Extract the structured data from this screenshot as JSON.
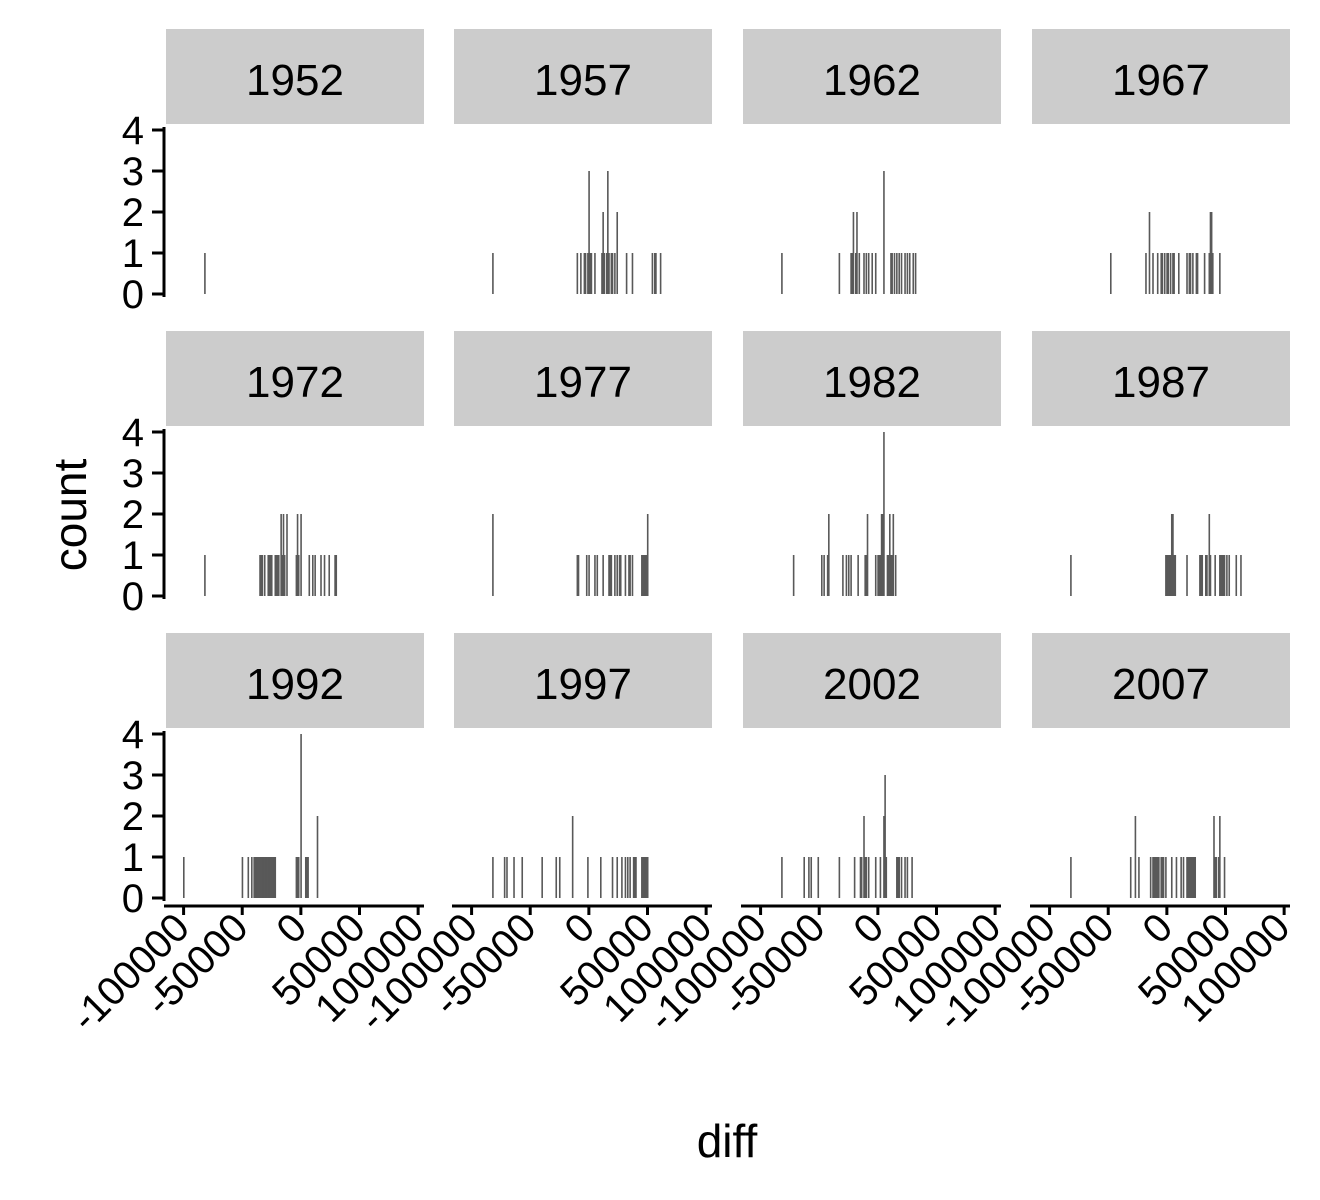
{
  "chart_data": {
    "type": "bar",
    "chart_kind": "faceted histogram",
    "xlabel": "diff",
    "ylabel": "count",
    "xlim": [
      -115000,
      105000
    ],
    "ylim": [
      0,
      4
    ],
    "x_ticks": [
      -100000,
      -50000,
      0,
      50000,
      100000
    ],
    "x_tick_labels": [
      "-100000",
      "-50000",
      "0",
      "50000",
      "100000"
    ],
    "y_ticks": [
      0,
      1,
      2,
      3,
      4
    ],
    "y_tick_labels": [
      "0",
      "1",
      "2",
      "3",
      "4"
    ],
    "grid": false,
    "legend": "none",
    "bar_color": "#595959",
    "strip_color": "#cccccc",
    "facets": [
      {
        "label": "1952",
        "bins": [
          [
            -82000,
            1
          ]
        ]
      },
      {
        "label": "1957",
        "bins": [
          [
            -82000,
            1
          ],
          [
            -10000,
            1
          ],
          [
            -7000,
            1
          ],
          [
            -4000,
            1
          ],
          [
            -3000,
            1
          ],
          [
            -1000,
            1
          ],
          [
            0,
            3
          ],
          [
            1000,
            1
          ],
          [
            2000,
            1
          ],
          [
            5000,
            1
          ],
          [
            11000,
            1
          ],
          [
            12000,
            2
          ],
          [
            13000,
            1
          ],
          [
            15000,
            1
          ],
          [
            16000,
            3
          ],
          [
            17000,
            1
          ],
          [
            19000,
            1
          ],
          [
            20000,
            1
          ],
          [
            22000,
            1
          ],
          [
            24000,
            2
          ],
          [
            32000,
            1
          ],
          [
            37000,
            1
          ],
          [
            54000,
            1
          ],
          [
            56000,
            1
          ],
          [
            57000,
            1
          ],
          [
            61000,
            1
          ]
        ]
      },
      {
        "label": "1962",
        "bins": [
          [
            -82000,
            1
          ],
          [
            -33000,
            1
          ],
          [
            -23000,
            1
          ],
          [
            -22000,
            1
          ],
          [
            -21000,
            2
          ],
          [
            -19000,
            1
          ],
          [
            -18000,
            2
          ],
          [
            -16000,
            1
          ],
          [
            -12000,
            1
          ],
          [
            -10000,
            1
          ],
          [
            -8000,
            1
          ],
          [
            -5000,
            1
          ],
          [
            -2000,
            1
          ],
          [
            5000,
            3
          ],
          [
            11000,
            1
          ],
          [
            12000,
            1
          ],
          [
            14000,
            1
          ],
          [
            16000,
            1
          ],
          [
            18000,
            1
          ],
          [
            20000,
            1
          ],
          [
            23000,
            1
          ],
          [
            25000,
            1
          ],
          [
            27000,
            1
          ],
          [
            30000,
            1
          ],
          [
            32000,
            1
          ]
        ]
      },
      {
        "label": "1967",
        "bins": [
          [
            -48000,
            1
          ],
          [
            -18000,
            1
          ],
          [
            -15000,
            2
          ],
          [
            -12000,
            1
          ],
          [
            -8000,
            1
          ],
          [
            -5000,
            1
          ],
          [
            -4000,
            1
          ],
          [
            -2000,
            1
          ],
          [
            0,
            1
          ],
          [
            1000,
            1
          ],
          [
            3000,
            1
          ],
          [
            5000,
            1
          ],
          [
            6000,
            1
          ],
          [
            10000,
            1
          ],
          [
            17000,
            1
          ],
          [
            19000,
            1
          ],
          [
            20000,
            1
          ],
          [
            22000,
            1
          ],
          [
            25000,
            1
          ],
          [
            26000,
            1
          ],
          [
            32000,
            1
          ],
          [
            36000,
            1
          ],
          [
            37000,
            2
          ],
          [
            38000,
            2
          ],
          [
            39000,
            1
          ],
          [
            45000,
            1
          ]
        ]
      },
      {
        "label": "1972",
        "bins": [
          [
            -82000,
            1
          ],
          [
            -35000,
            1
          ],
          [
            -34000,
            1
          ],
          [
            -33000,
            1
          ],
          [
            -31000,
            1
          ],
          [
            -28000,
            1
          ],
          [
            -27000,
            1
          ],
          [
            -26000,
            1
          ],
          [
            -25000,
            1
          ],
          [
            -22000,
            1
          ],
          [
            -21000,
            1
          ],
          [
            -20000,
            1
          ],
          [
            -19000,
            1
          ],
          [
            -17000,
            2
          ],
          [
            -16000,
            1
          ],
          [
            -15000,
            2
          ],
          [
            -14000,
            1
          ],
          [
            -12000,
            2
          ],
          [
            -4000,
            1
          ],
          [
            -3000,
            2
          ],
          [
            -2000,
            1
          ],
          [
            0,
            2
          ],
          [
            7000,
            1
          ],
          [
            10000,
            1
          ],
          [
            12000,
            1
          ],
          [
            17000,
            1
          ],
          [
            20000,
            1
          ],
          [
            24000,
            1
          ],
          [
            29000,
            1
          ],
          [
            30000,
            1
          ]
        ]
      },
      {
        "label": "1977",
        "bins": [
          [
            -82000,
            2
          ],
          [
            -10000,
            1
          ],
          [
            -9000,
            1
          ],
          [
            -2000,
            1
          ],
          [
            0,
            1
          ],
          [
            5000,
            1
          ],
          [
            7000,
            1
          ],
          [
            12000,
            1
          ],
          [
            17000,
            1
          ],
          [
            18000,
            1
          ],
          [
            19000,
            1
          ],
          [
            22000,
            1
          ],
          [
            24000,
            1
          ],
          [
            26000,
            1
          ],
          [
            27000,
            1
          ],
          [
            31000,
            1
          ],
          [
            34000,
            1
          ],
          [
            35000,
            1
          ],
          [
            37000,
            1
          ],
          [
            45000,
            1
          ],
          [
            46000,
            1
          ],
          [
            47000,
            1
          ],
          [
            48000,
            1
          ],
          [
            49000,
            1
          ],
          [
            50000,
            2
          ]
        ]
      },
      {
        "label": "1982",
        "bins": [
          [
            -72000,
            1
          ],
          [
            -48000,
            1
          ],
          [
            -46000,
            1
          ],
          [
            -43000,
            1
          ],
          [
            -42000,
            2
          ],
          [
            -30000,
            1
          ],
          [
            -27000,
            1
          ],
          [
            -25000,
            1
          ],
          [
            -23000,
            1
          ],
          [
            -17000,
            1
          ],
          [
            -11000,
            1
          ],
          [
            -10000,
            1
          ],
          [
            -9000,
            2
          ],
          [
            -2000,
            1
          ],
          [
            0,
            1
          ],
          [
            1000,
            1
          ],
          [
            2000,
            1
          ],
          [
            3000,
            2
          ],
          [
            4000,
            2
          ],
          [
            5000,
            4
          ],
          [
            8000,
            1
          ],
          [
            9000,
            1
          ],
          [
            10000,
            2
          ],
          [
            11000,
            1
          ],
          [
            12000,
            1
          ],
          [
            13000,
            2
          ],
          [
            15000,
            1
          ]
        ]
      },
      {
        "label": "1987",
        "bins": [
          [
            -82000,
            1
          ],
          [
            -1000,
            1
          ],
          [
            0,
            1
          ],
          [
            1000,
            1
          ],
          [
            2000,
            1
          ],
          [
            3000,
            1
          ],
          [
            4000,
            2
          ],
          [
            5000,
            2
          ],
          [
            6000,
            1
          ],
          [
            7000,
            1
          ],
          [
            17000,
            1
          ],
          [
            28000,
            1
          ],
          [
            29000,
            1
          ],
          [
            30000,
            1
          ],
          [
            33000,
            1
          ],
          [
            34000,
            1
          ],
          [
            36000,
            2
          ],
          [
            37000,
            1
          ],
          [
            41000,
            1
          ],
          [
            45000,
            1
          ],
          [
            46000,
            1
          ],
          [
            47000,
            1
          ],
          [
            48000,
            1
          ],
          [
            49000,
            1
          ],
          [
            51000,
            1
          ],
          [
            53000,
            1
          ],
          [
            59000,
            1
          ],
          [
            63000,
            1
          ]
        ]
      },
      {
        "label": "1992",
        "bins": [
          [
            -100000,
            1
          ],
          [
            -50000,
            1
          ],
          [
            -45000,
            1
          ],
          [
            -42000,
            1
          ],
          [
            -40000,
            1
          ],
          [
            -39000,
            1
          ],
          [
            -38000,
            1
          ],
          [
            -37000,
            1
          ],
          [
            -36000,
            1
          ],
          [
            -35000,
            1
          ],
          [
            -34000,
            1
          ],
          [
            -33000,
            1
          ],
          [
            -32000,
            1
          ],
          [
            -31000,
            1
          ],
          [
            -30000,
            1
          ],
          [
            -29000,
            1
          ],
          [
            -28000,
            1
          ],
          [
            -27000,
            1
          ],
          [
            -26000,
            1
          ],
          [
            -25000,
            1
          ],
          [
            -24000,
            1
          ],
          [
            -23000,
            1
          ],
          [
            -22000,
            1
          ],
          [
            -4000,
            1
          ],
          [
            -3000,
            1
          ],
          [
            -2000,
            1
          ],
          [
            0,
            4
          ],
          [
            4000,
            1
          ],
          [
            5000,
            1
          ],
          [
            6000,
            1
          ],
          [
            14000,
            2
          ]
        ]
      },
      {
        "label": "1997",
        "bins": [
          [
            -82000,
            1
          ],
          [
            -72000,
            1
          ],
          [
            -70000,
            1
          ],
          [
            -64000,
            1
          ],
          [
            -57000,
            1
          ],
          [
            -40000,
            1
          ],
          [
            -28000,
            1
          ],
          [
            -25000,
            1
          ],
          [
            -14000,
            2
          ],
          [
            -1000,
            1
          ],
          [
            10000,
            1
          ],
          [
            20000,
            1
          ],
          [
            24000,
            1
          ],
          [
            28000,
            1
          ],
          [
            31000,
            1
          ],
          [
            33000,
            1
          ],
          [
            35000,
            1
          ],
          [
            38000,
            1
          ],
          [
            39000,
            1
          ],
          [
            40000,
            1
          ],
          [
            45000,
            1
          ],
          [
            46000,
            1
          ],
          [
            47000,
            1
          ],
          [
            48000,
            1
          ],
          [
            49000,
            1
          ],
          [
            50000,
            1
          ]
        ]
      },
      {
        "label": "2002",
        "bins": [
          [
            -82000,
            1
          ],
          [
            -63000,
            1
          ],
          [
            -59000,
            1
          ],
          [
            -57000,
            1
          ],
          [
            -51000,
            1
          ],
          [
            -33000,
            1
          ],
          [
            -20000,
            1
          ],
          [
            -15000,
            1
          ],
          [
            -14000,
            1
          ],
          [
            -12000,
            2
          ],
          [
            -11000,
            1
          ],
          [
            -10000,
            1
          ],
          [
            -8000,
            1
          ],
          [
            -2000,
            1
          ],
          [
            2000,
            1
          ],
          [
            5000,
            2
          ],
          [
            6000,
            3
          ],
          [
            7000,
            1
          ],
          [
            16000,
            1
          ],
          [
            17000,
            1
          ],
          [
            18000,
            1
          ],
          [
            20000,
            1
          ],
          [
            23000,
            1
          ],
          [
            25000,
            1
          ],
          [
            29000,
            1
          ]
        ]
      },
      {
        "label": "2007",
        "bins": [
          [
            -82000,
            1
          ],
          [
            -31000,
            1
          ],
          [
            -27000,
            2
          ],
          [
            -24000,
            1
          ],
          [
            -14000,
            1
          ],
          [
            -12000,
            1
          ],
          [
            -11000,
            1
          ],
          [
            -10000,
            1
          ],
          [
            -9000,
            1
          ],
          [
            -8000,
            1
          ],
          [
            -7000,
            1
          ],
          [
            -5000,
            1
          ],
          [
            -4000,
            1
          ],
          [
            -3000,
            1
          ],
          [
            -1000,
            1
          ],
          [
            4000,
            1
          ],
          [
            8000,
            1
          ],
          [
            12000,
            1
          ],
          [
            14000,
            1
          ],
          [
            17000,
            1
          ],
          [
            18000,
            1
          ],
          [
            19000,
            1
          ],
          [
            20000,
            1
          ],
          [
            21000,
            1
          ],
          [
            22000,
            1
          ],
          [
            23000,
            1
          ],
          [
            24000,
            1
          ],
          [
            40000,
            2
          ],
          [
            41000,
            1
          ],
          [
            42000,
            1
          ],
          [
            44000,
            1
          ],
          [
            45000,
            2
          ],
          [
            49000,
            1
          ]
        ]
      }
    ]
  }
}
